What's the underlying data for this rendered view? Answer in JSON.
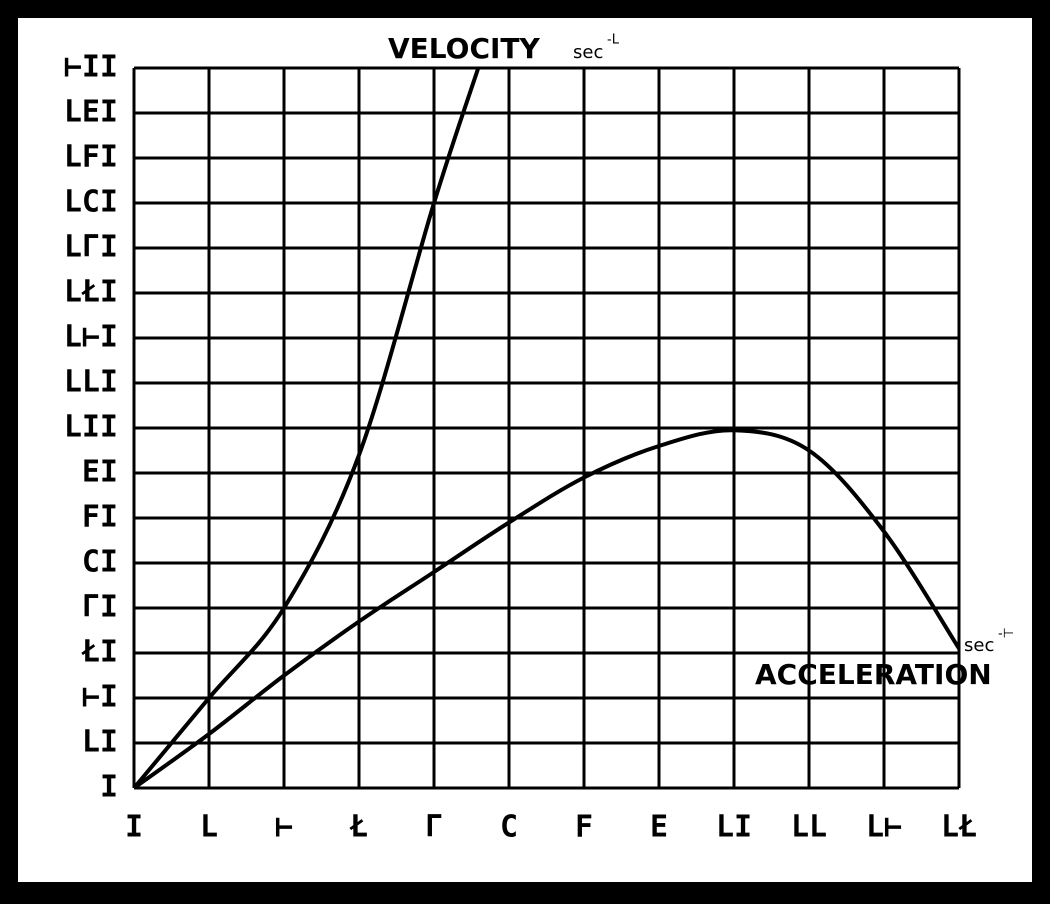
{
  "chart_data": {
    "type": "line",
    "grid": true,
    "xlim": [
      0,
      11
    ],
    "ylim": [
      0,
      160
    ],
    "xticks": [
      {
        "value": 0,
        "label": "I"
      },
      {
        "value": 1,
        "label": "L"
      },
      {
        "value": 2,
        "label": "⊢"
      },
      {
        "value": 3,
        "label": "Ł"
      },
      {
        "value": 4,
        "label": "Γ"
      },
      {
        "value": 5,
        "label": "C"
      },
      {
        "value": 6,
        "label": "F"
      },
      {
        "value": 7,
        "label": "E"
      },
      {
        "value": 8,
        "label": "LI"
      },
      {
        "value": 9,
        "label": "LL"
      },
      {
        "value": 10,
        "label": "L⊢"
      },
      {
        "value": 11,
        "label": "LŁ"
      }
    ],
    "yticks": [
      {
        "value": 0,
        "label": "I"
      },
      {
        "value": 10,
        "label": "LI"
      },
      {
        "value": 20,
        "label": "⊢I"
      },
      {
        "value": 30,
        "label": "ŁI"
      },
      {
        "value": 40,
        "label": "ΓI"
      },
      {
        "value": 50,
        "label": "CI"
      },
      {
        "value": 60,
        "label": "FI"
      },
      {
        "value": 70,
        "label": "EI"
      },
      {
        "value": 80,
        "label": "LII"
      },
      {
        "value": 90,
        "label": "LLI"
      },
      {
        "value": 100,
        "label": "L⊢I"
      },
      {
        "value": 110,
        "label": "LŁI"
      },
      {
        "value": 120,
        "label": "LΓI"
      },
      {
        "value": 130,
        "label": "LCI"
      },
      {
        "value": 140,
        "label": "LFI"
      },
      {
        "value": 150,
        "label": "LEI"
      },
      {
        "value": 160,
        "label": "⊢II"
      }
    ],
    "series": [
      {
        "name": "VELOCITY",
        "unit": "sec",
        "exponent": "-L",
        "color": "#000000",
        "x": [
          0,
          1,
          2,
          3,
          4,
          4.59
        ],
        "values": [
          0,
          20,
          40,
          74,
          130,
          160
        ]
      },
      {
        "name": "ACCELERATION",
        "unit": "sec",
        "exponent": "-⊢",
        "color": "#000000",
        "x": [
          0,
          1,
          2,
          3,
          4,
          5,
          6,
          7,
          8,
          9,
          10,
          11
        ],
        "values": [
          0,
          12,
          25,
          37,
          48,
          59,
          69,
          76,
          79.5,
          75,
          57,
          31
        ]
      }
    ]
  }
}
